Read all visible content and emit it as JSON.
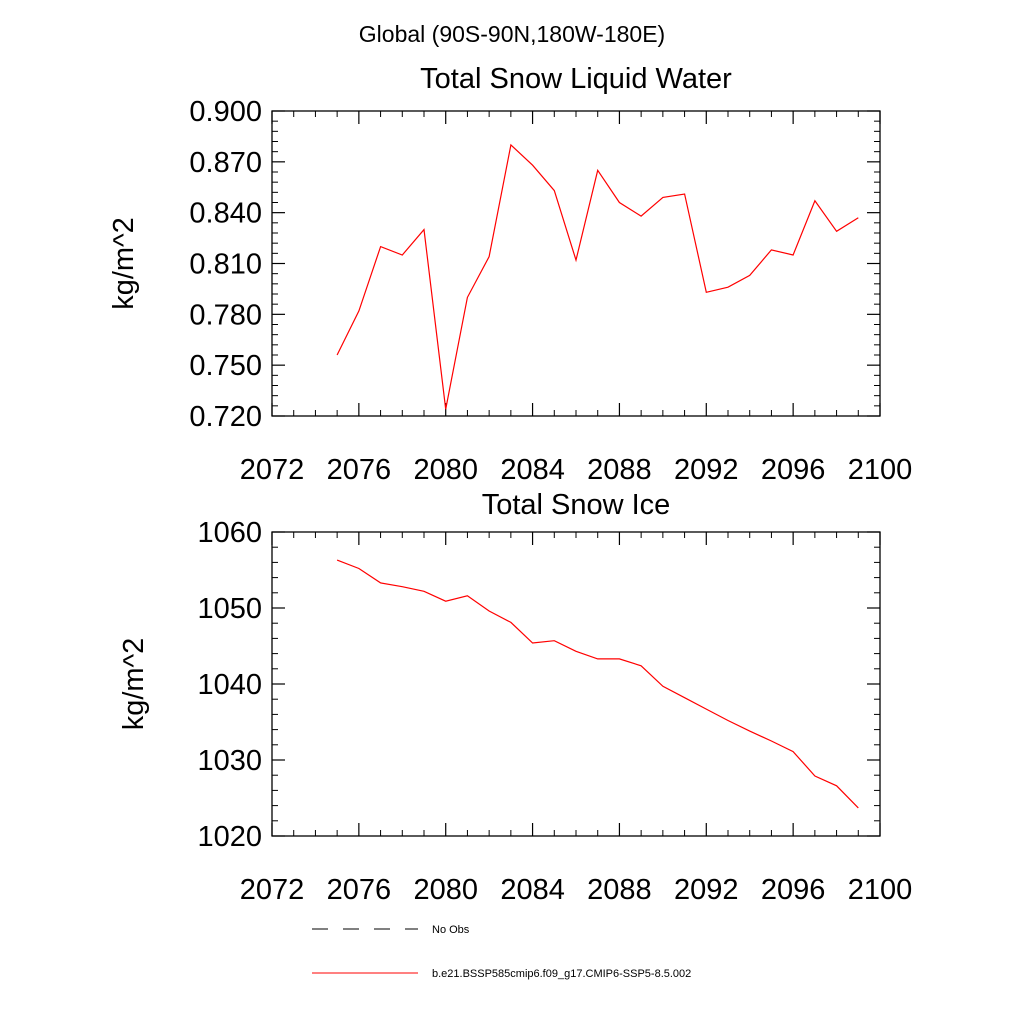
{
  "figure_title": "Global (90S-90N,180W-180E)",
  "legend": {
    "entries": [
      {
        "label": "No Obs",
        "style": "dashed",
        "color": "#000000"
      },
      {
        "label": "b.e21.BSSP585cmip6.f09_g17.CMIP6-SSP5-8.5.002",
        "style": "solid",
        "color": "#ff0000"
      }
    ]
  },
  "chart_data": [
    {
      "type": "line",
      "title": "Total Snow Liquid Water",
      "xlabel": "",
      "ylabel": "kg/m^2",
      "xlim": [
        2072,
        2100
      ],
      "ylim": [
        0.72,
        0.9
      ],
      "xticks": [
        2072,
        2076,
        2080,
        2084,
        2088,
        2092,
        2096,
        2100
      ],
      "xtick_labels": [
        "2072",
        "2076",
        "2080",
        "2084",
        "2088",
        "2092",
        "2096",
        "2100"
      ],
      "yticks": [
        0.72,
        0.75,
        0.78,
        0.81,
        0.84,
        0.87,
        0.9
      ],
      "ytick_labels": [
        "0.720",
        "0.750",
        "0.780",
        "0.810",
        "0.840",
        "0.870",
        "0.900"
      ],
      "x_minor_step": 1,
      "y_minor_step": 0.006,
      "grid": false,
      "series": [
        {
          "color": "#ff0000",
          "x": [
            2075,
            2076,
            2077,
            2078,
            2079,
            2080,
            2081,
            2082,
            2083,
            2084,
            2085,
            2086,
            2087,
            2088,
            2089,
            2090,
            2091,
            2092,
            2093,
            2094,
            2095,
            2096,
            2097,
            2098,
            2099
          ],
          "values": [
            0.756,
            0.782,
            0.82,
            0.815,
            0.83,
            0.724,
            0.79,
            0.814,
            0.88,
            0.868,
            0.853,
            0.812,
            0.865,
            0.846,
            0.838,
            0.849,
            0.851,
            0.793,
            0.796,
            0.803,
            0.818,
            0.815,
            0.847,
            0.829,
            0.837
          ]
        }
      ]
    },
    {
      "type": "line",
      "title": "Total Snow Ice",
      "xlabel": "",
      "ylabel": "kg/m^2",
      "xlim": [
        2072,
        2100
      ],
      "ylim": [
        1020,
        1060
      ],
      "xticks": [
        2072,
        2076,
        2080,
        2084,
        2088,
        2092,
        2096,
        2100
      ],
      "xtick_labels": [
        "2072",
        "2076",
        "2080",
        "2084",
        "2088",
        "2092",
        "2096",
        "2100"
      ],
      "yticks": [
        1020,
        1030,
        1040,
        1050,
        1060
      ],
      "ytick_labels": [
        "1020",
        "1030",
        "1040",
        "1050",
        "1060"
      ],
      "x_minor_step": 1,
      "y_minor_step": 2,
      "grid": false,
      "series": [
        {
          "color": "#ff0000",
          "x": [
            2075,
            2076,
            2077,
            2078,
            2079,
            2080,
            2081,
            2082,
            2083,
            2084,
            2085,
            2086,
            2087,
            2088,
            2089,
            2090,
            2091,
            2092,
            2093,
            2094,
            2095,
            2096,
            2097,
            2098,
            2099
          ],
          "values": [
            1056.3,
            1055.2,
            1053.3,
            1052.8,
            1052.2,
            1050.9,
            1051.6,
            1049.6,
            1048.1,
            1045.4,
            1045.7,
            1044.3,
            1043.3,
            1043.3,
            1042.4,
            1039.7,
            1038.2,
            1036.7,
            1035.2,
            1033.8,
            1032.5,
            1031.1,
            1027.9,
            1026.6,
            1023.7
          ]
        }
      ]
    }
  ]
}
